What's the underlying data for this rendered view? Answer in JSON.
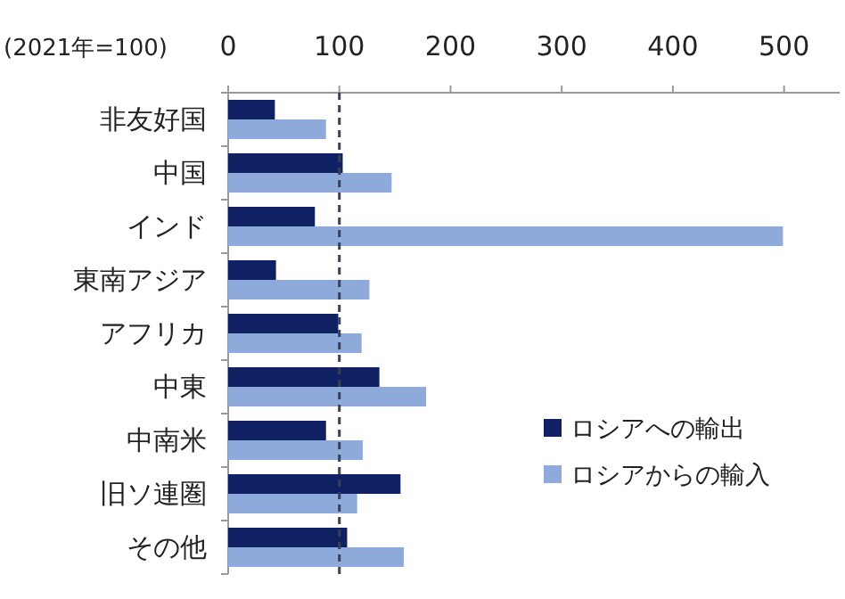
{
  "chart_data": {
    "type": "bar",
    "orientation": "horizontal",
    "xlabel": "(2021年=100)",
    "categories": [
      "非友好国",
      "中国",
      "インド",
      "東南アジア",
      "アフリカ",
      "中東",
      "中南米",
      "旧ソ連圏",
      "その他"
    ],
    "series": [
      {
        "name": "ロシアへの輸出",
        "color": "#0f2163",
        "values": [
          42,
          103,
          78,
          43,
          99,
          136,
          88,
          155,
          107
        ]
      },
      {
        "name": "ロシアからの輸入",
        "color": "#8eaadb",
        "values": [
          88,
          147,
          499,
          127,
          120,
          178,
          121,
          116,
          158
        ]
      }
    ],
    "xlim": [
      0,
      550
    ],
    "xticks": [
      0,
      100,
      200,
      300,
      400,
      500
    ],
    "ref_lines": [
      {
        "axis": "x",
        "value": 100,
        "color": "#3a3f52",
        "line_style": "dashed"
      }
    ],
    "grid": false,
    "legend": "right"
  }
}
